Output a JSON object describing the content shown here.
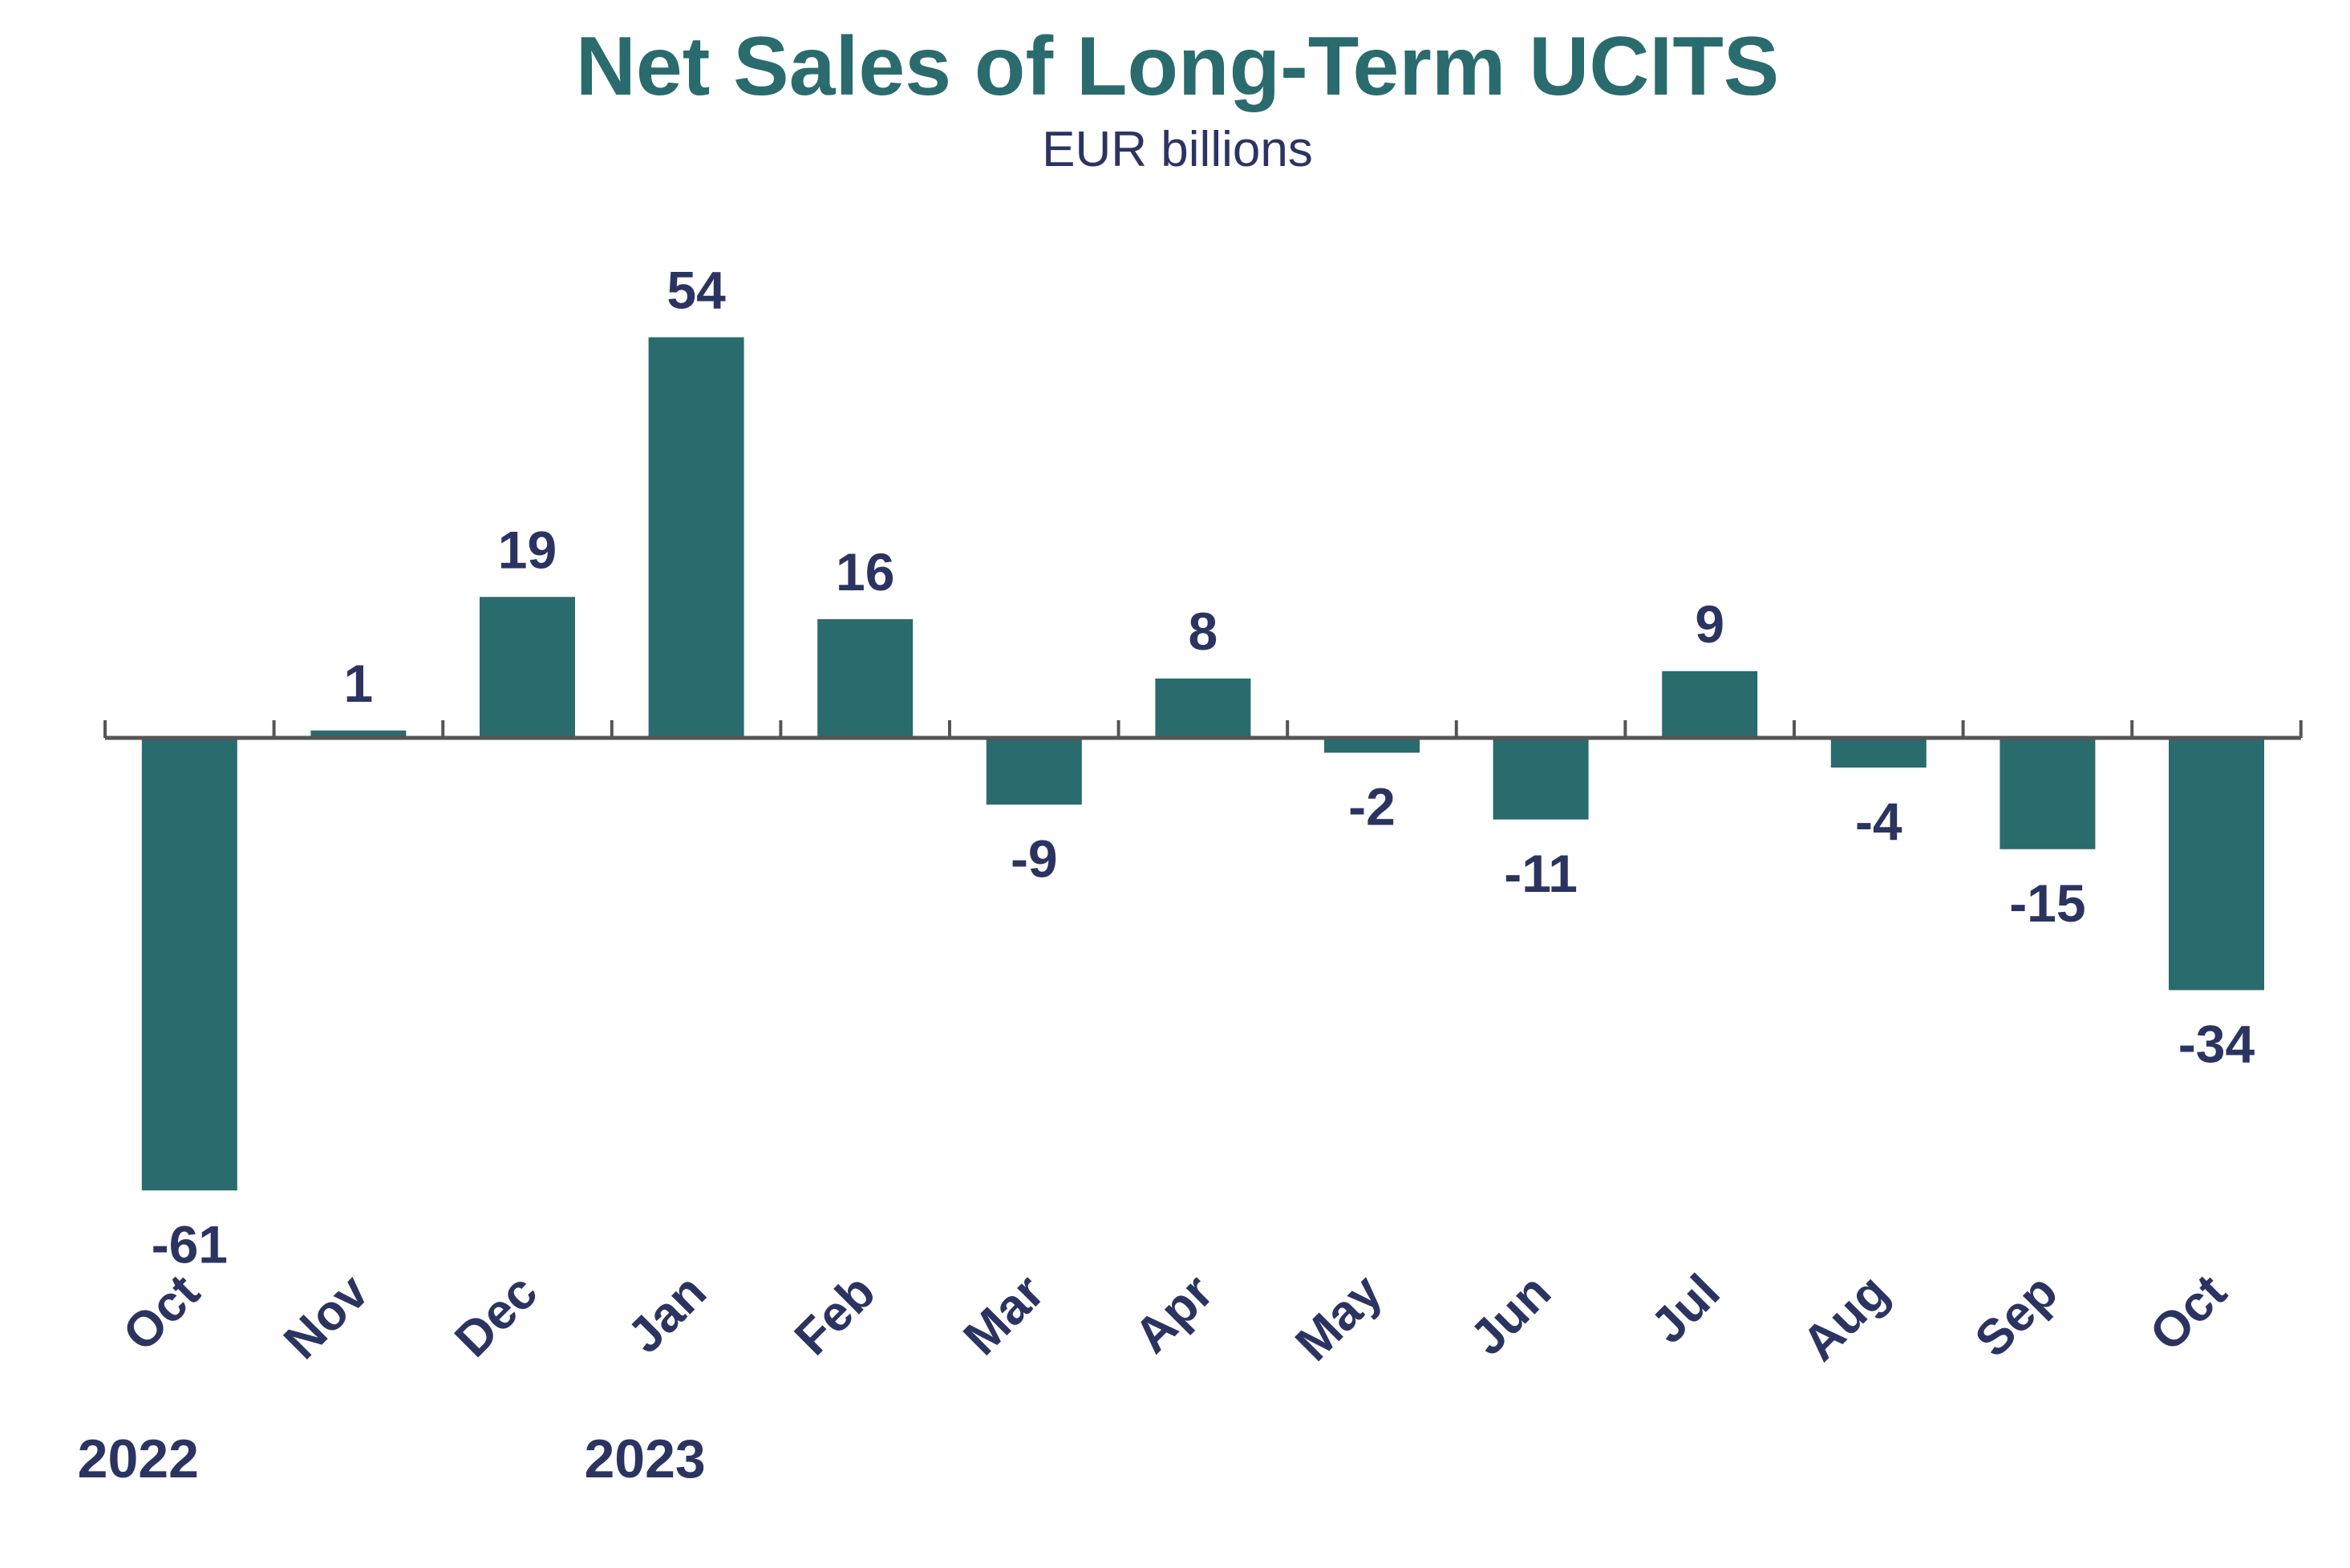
{
  "chart_data": {
    "type": "bar",
    "title": "Net Sales of Long-Term UCITS",
    "subtitle": "EUR billions",
    "categories": [
      "Oct",
      "Nov",
      "Dec",
      "Jan",
      "Feb",
      "Mar",
      "Apr",
      "May",
      "Jun",
      "Jul",
      "Aug",
      "Sep",
      "Oct"
    ],
    "year_labels": [
      {
        "label": "2022",
        "category_index": 0
      },
      {
        "label": "2023",
        "category_index": 3
      }
    ],
    "values": [
      -61,
      1,
      19,
      54,
      16,
      -9,
      8,
      -2,
      -11,
      9,
      -4,
      -15,
      -34
    ],
    "data_labels": [
      "-61",
      "1",
      "19",
      "54",
      "16",
      "-9",
      "8",
      "-2",
      "-11",
      "9",
      "-4",
      "-15",
      "-34"
    ],
    "xlabel": "",
    "ylabel": "",
    "ylim": [
      -61,
      54
    ],
    "grid": false,
    "legend": "none",
    "colors": {
      "bar": "#2a6b6e",
      "title": "#2a6b6e",
      "text": "#2b3461",
      "axis": "#555555"
    }
  }
}
